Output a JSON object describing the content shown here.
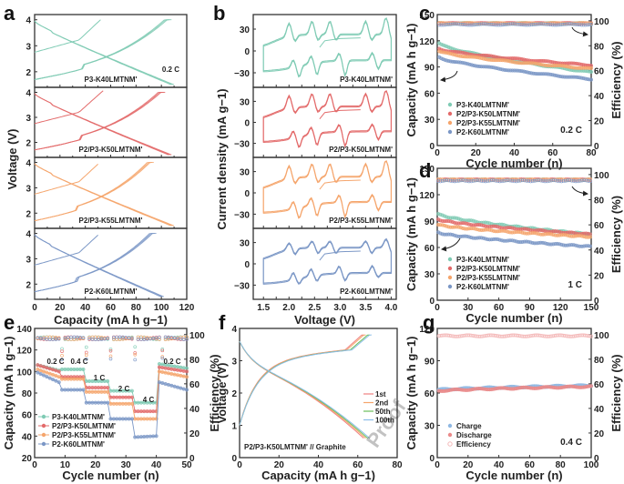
{
  "panels": {
    "a": {
      "label": "a"
    },
    "b": {
      "label": "b"
    },
    "c": {
      "label": "c"
    },
    "d": {
      "label": "d"
    },
    "e": {
      "label": "e"
    },
    "f": {
      "label": "f"
    },
    "g": {
      "label": "g"
    }
  },
  "watermark": "Proof",
  "colors": {
    "K40": "#7fcbb4",
    "K50": "#e36a6a",
    "K55": "#f5a56c",
    "K60": "#7b97c6",
    "charge": "#8fb8e3",
    "discharge": "#ea8a8a",
    "efficiency": "#f4b9b9",
    "cyc1": "#f08080",
    "cyc2": "#f5a56c",
    "cyc50": "#6cbf5a",
    "cyc100": "#8bbde8"
  },
  "chart_data": [
    {
      "id": "a",
      "type": "line",
      "title": "",
      "xlabel": "Capacity (mA h g−1)",
      "ylabel": "Voltage (V)",
      "xlim": [
        0,
        120
      ],
      "ylim": [
        1.4,
        4.2
      ],
      "xticks": [
        "0",
        "20",
        "40",
        "60",
        "80",
        "100",
        "120"
      ],
      "yticks": [
        "2",
        "3",
        "4"
      ],
      "annotation": "0.2 C",
      "subplots": [
        {
          "name": "P3-K40LMTNM'",
          "color_key": "K40",
          "charge_end": 108,
          "discharge_end": 110,
          "first_charge_end": 52
        },
        {
          "name": "P2/P3-K50LMTNM'",
          "color_key": "K50",
          "charge_end": 103,
          "discharge_end": 108,
          "first_charge_end": 54
        },
        {
          "name": "P2/P3-K55LMTNM'",
          "color_key": "K55",
          "charge_end": 94,
          "discharge_end": 110,
          "first_charge_end": 50
        },
        {
          "name": "P2-K60LMTNM'",
          "color_key": "K60",
          "charge_end": 96,
          "discharge_end": 102,
          "first_charge_end": 50
        }
      ]
    },
    {
      "id": "b",
      "type": "line",
      "title": "",
      "xlabel": "Voltage (V)",
      "ylabel": "Current density (mA g−1)",
      "xlim": [
        1.3,
        4.1
      ],
      "ylim": [
        -50,
        50
      ],
      "xticks": [
        "1.5",
        "2.0",
        "2.5",
        "3.0",
        "3.5",
        "4.0"
      ],
      "yticks": [
        "−30",
        "0",
        "30"
      ],
      "subplots": [
        {
          "name": "P3-K40LMTNM'",
          "color_key": "K40"
        },
        {
          "name": "P2/P3-K50LMTNM'",
          "color_key": "K50"
        },
        {
          "name": "P2/P3-K55LMTNM'",
          "color_key": "K55"
        },
        {
          "name": "P2-K60LMTNM'",
          "color_key": "K60"
        }
      ]
    },
    {
      "id": "c",
      "type": "scatter",
      "title": "",
      "xlabel": "Cycle number (n)",
      "ylabel": "Capacity (mA h g−1)",
      "y2label": "Efficiency (%)",
      "xlim": [
        0,
        80
      ],
      "ylim": [
        0,
        150
      ],
      "y2lim": [
        0,
        105
      ],
      "xticks": [
        "0",
        "20",
        "40",
        "60",
        "80"
      ],
      "yticks": [
        "0",
        "30",
        "60",
        "90",
        "120",
        "150"
      ],
      "y2ticks": [
        "0",
        "20",
        "40",
        "60",
        "80",
        "100"
      ],
      "annotation": "0.2 C",
      "legend_position": "bottom-left",
      "series": [
        {
          "name": "P3-K40LMTNM'",
          "color_key": "K40",
          "start": 117,
          "end": 84,
          "efficiency": 98
        },
        {
          "name": "P2/P3-K50LMTNM'",
          "color_key": "K50",
          "start": 111,
          "end": 92,
          "efficiency": 98
        },
        {
          "name": "P2/P3-K55LMTNM'",
          "color_key": "K55",
          "start": 108,
          "end": 88,
          "efficiency": 98
        },
        {
          "name": "P2-K60LMTNM'",
          "color_key": "K60",
          "start": 101,
          "end": 76,
          "efficiency": 97
        }
      ]
    },
    {
      "id": "d",
      "type": "scatter",
      "title": "",
      "xlabel": "Cycle number (n)",
      "ylabel": "Capacity (mA h g−1)",
      "y2label": "Efficiency (%)",
      "xlim": [
        0,
        150
      ],
      "ylim": [
        0,
        150
      ],
      "y2lim": [
        0,
        105
      ],
      "xticks": [
        "0",
        "30",
        "60",
        "90",
        "120",
        "150"
      ],
      "yticks": [
        "0",
        "30",
        "60",
        "90",
        "120",
        "150"
      ],
      "y2ticks": [
        "0",
        "20",
        "40",
        "60",
        "80",
        "100"
      ],
      "annotation": "1 C",
      "legend_position": "bottom-left",
      "series": [
        {
          "name": "P3-K40LMTNM'",
          "color_key": "K40",
          "start": 98,
          "end": 75,
          "efficiency": 96
        },
        {
          "name": "P2/P3-K50LMTNM'",
          "color_key": "K50",
          "start": 92,
          "end": 75,
          "efficiency": 96
        },
        {
          "name": "P2/P3-K55LMTNM'",
          "color_key": "K55",
          "start": 86,
          "end": 72,
          "efficiency": 96
        },
        {
          "name": "P2-K60LMTNM'",
          "color_key": "K60",
          "start": 77,
          "end": 61,
          "efficiency": 95
        }
      ]
    },
    {
      "id": "e",
      "type": "scatter",
      "title": "",
      "xlabel": "Cycle number (n)",
      "ylabel": "Capacity (mA h g−1)",
      "y2label": "Efficiency (%)",
      "xlim": [
        0,
        50
      ],
      "ylim": [
        20,
        140
      ],
      "y2lim": [
        0,
        105
      ],
      "xticks": [
        "0",
        "10",
        "20",
        "30",
        "40",
        "50"
      ],
      "yticks": [
        "20",
        "40",
        "60",
        "80",
        "100",
        "120",
        "140"
      ],
      "y2ticks": [
        "0",
        "20",
        "40",
        "60",
        "80",
        "100"
      ],
      "rate_labels": [
        "0.2 C",
        "0.4 C",
        "1 C",
        "2 C",
        "4 C",
        "0.2 C"
      ],
      "legend_position": "bottom-left",
      "series": [
        {
          "name": "P3-K40LMTNM'",
          "color_key": "K40",
          "steps": [
            [
              106,
              101
            ],
            [
              102,
              102
            ],
            [
              91,
              91
            ],
            [
              82,
              82
            ],
            [
              71,
              71
            ],
            [
              107,
              103
            ]
          ]
        },
        {
          "name": "P2/P3-K50LMTNM'",
          "color_key": "K50",
          "steps": [
            [
              106,
              100
            ],
            [
              95,
              95
            ],
            [
              85,
              85
            ],
            [
              76,
              76
            ],
            [
              63,
              63
            ],
            [
              104,
              100
            ]
          ]
        },
        {
          "name": "P2/P3-K55LMTNM'",
          "color_key": "K55",
          "steps": [
            [
              102,
              95
            ],
            [
              93,
              93
            ],
            [
              81,
              81
            ],
            [
              70,
              70
            ],
            [
              56,
              56
            ],
            [
              100,
              95
            ]
          ]
        },
        {
          "name": "P2-K60LMTNM'",
          "color_key": "K60",
          "steps": [
            [
              99,
              90
            ],
            [
              83,
              83
            ],
            [
              71,
              71
            ],
            [
              56,
              56
            ],
            [
              39,
              40
            ],
            [
              90,
              83
            ]
          ]
        }
      ]
    },
    {
      "id": "f",
      "type": "line",
      "title": "",
      "xlabel": "Capacity (mA h g−1)",
      "ylabel": "Voltage (V)",
      "xlim": [
        0,
        80
      ],
      "ylim": [
        0,
        4
      ],
      "xticks": [
        "0",
        "20",
        "40",
        "60",
        "80"
      ],
      "yticks": [
        "0",
        "1",
        "2",
        "3",
        "4"
      ],
      "annotation": "P2/P3-K50LMTNM' // Graphite",
      "legend_position": "right",
      "series": [
        {
          "name": "1st",
          "color_key": "cyc1",
          "charge_end": 63,
          "discharge_end": 63
        },
        {
          "name": "2nd",
          "color_key": "cyc2",
          "charge_end": 64,
          "discharge_end": 64
        },
        {
          "name": "50th",
          "color_key": "cyc50",
          "charge_end": 66,
          "discharge_end": 65
        },
        {
          "name": "100th",
          "color_key": "cyc100",
          "charge_end": 67,
          "discharge_end": 66
        }
      ]
    },
    {
      "id": "g",
      "type": "scatter",
      "title": "",
      "xlabel": "Cycle number (n)",
      "ylabel": "Capacity (mA h g−1)",
      "y2label": "Efficiency (%)",
      "xlim": [
        0,
        100
      ],
      "ylim": [
        0,
        120
      ],
      "y2lim": [
        0,
        105
      ],
      "xticks": [
        "0",
        "20",
        "40",
        "60",
        "80",
        "100"
      ],
      "yticks": [
        "0",
        "30",
        "60",
        "90",
        "120"
      ],
      "y2ticks": [
        "0",
        "20",
        "40",
        "60",
        "80",
        "100"
      ],
      "annotation": "0.4 C",
      "legend_position": "bottom-left",
      "series": [
        {
          "name": "Charge",
          "color_key": "charge",
          "start": 63,
          "end": 67
        },
        {
          "name": "Discharge",
          "color_key": "discharge",
          "start": 62,
          "end": 66
        },
        {
          "name": "Efficiency",
          "color_key": "efficiency",
          "start": 99,
          "end": 99
        }
      ]
    }
  ]
}
